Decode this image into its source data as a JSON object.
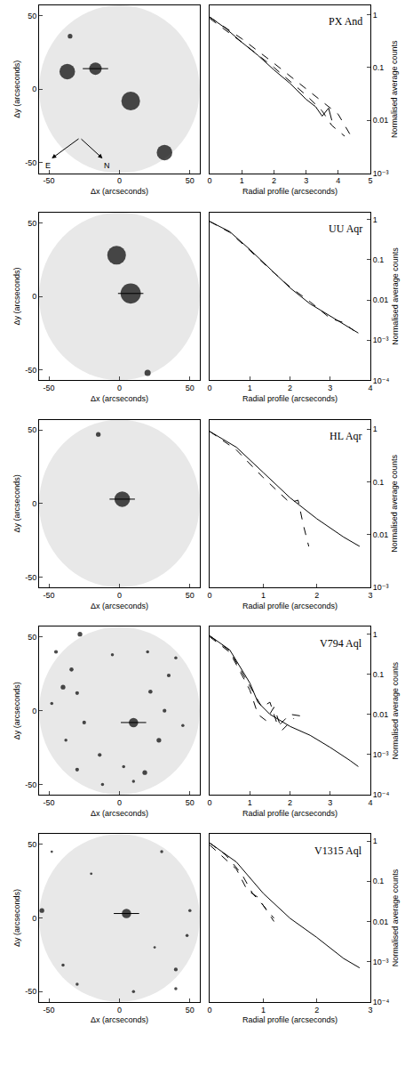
{
  "chart_data": [
    {
      "type": "image",
      "x_label": "Δx (arcseconds)",
      "y_label": "Δy (arcseconds)",
      "xlim": [
        -57,
        57
      ],
      "ylim": [
        -57,
        57
      ],
      "xticks": [
        -50,
        0,
        50
      ],
      "yticks": [
        -50,
        0,
        50
      ],
      "stars": {
        "x": [
          -37,
          8,
          32,
          -35
        ],
        "y": [
          12,
          -8,
          -43,
          36
        ],
        "size": [
          5,
          6,
          5,
          1.5
        ]
      },
      "target": {
        "x": -17,
        "y": 14,
        "size": 4
      },
      "compass": [
        "E",
        "N"
      ]
    },
    {
      "type": "line",
      "title": "PX And",
      "x_label": "Radial profile (arcseconds)",
      "y_label": "Normalised average counts",
      "log": "y",
      "xlim": [
        0,
        5
      ],
      "xticks": [
        0,
        1,
        2,
        3,
        4,
        5
      ],
      "ylim": [
        0.001,
        1.5
      ],
      "yticks": [
        1,
        0.1,
        0.01,
        {
          "value": 0.001,
          "label": "10⁻³"
        }
      ],
      "series": [
        {
          "line_style": "solid",
          "x": [
            0,
            0.5,
            1,
            1.5,
            2,
            2.5,
            3,
            3.3,
            3.5,
            3.7,
            3.8
          ],
          "values": [
            0.9,
            0.55,
            0.3,
            0.17,
            0.09,
            0.05,
            0.025,
            0.018,
            0.012,
            0.017,
            0.01
          ]
        },
        {
          "line_style": "dash",
          "x": [
            0,
            1,
            2,
            3,
            4,
            4.4
          ],
          "values": [
            0.9,
            0.35,
            0.12,
            0.04,
            0.013,
            0.005
          ]
        },
        {
          "line_style": "dash",
          "x": [
            0,
            1,
            2,
            3,
            3.5,
            3.8,
            4.2
          ],
          "values": [
            0.85,
            0.3,
            0.1,
            0.03,
            0.015,
            0.008,
            0.005
          ]
        }
      ]
    },
    {
      "type": "image",
      "x_label": "Δx (arcseconds)",
      "y_label": "Δy (arcseconds)",
      "xlim": [
        -57,
        57
      ],
      "ylim": [
        -57,
        57
      ],
      "xticks": [
        -50,
        0,
        50
      ],
      "yticks": [
        -50,
        0,
        50
      ],
      "stars": {
        "x": [
          -2,
          20
        ],
        "y": [
          28,
          -52
        ],
        "size": [
          6,
          2
        ]
      },
      "target": {
        "x": 8,
        "y": 2,
        "size": 6.5
      }
    },
    {
      "type": "line",
      "title": "UU Aqr",
      "x_label": "Radial profile (arcseconds)",
      "y_label": "Normalised average counts",
      "log": "y",
      "xlim": [
        0,
        4
      ],
      "xticks": [
        0,
        1,
        2,
        3,
        4
      ],
      "ylim": [
        0.0001,
        1.5
      ],
      "yticks": [
        1,
        0.1,
        0.01,
        {
          "value": 0.001,
          "label": "10⁻³"
        },
        {
          "value": 0.0001,
          "label": "10⁻⁴"
        }
      ],
      "series": [
        {
          "line_style": "solid",
          "x": [
            0,
            0.5,
            1,
            1.5,
            2,
            2.5,
            3,
            3.5,
            3.7
          ],
          "values": [
            0.9,
            0.5,
            0.18,
            0.06,
            0.02,
            0.008,
            0.004,
            0.002,
            0.0015
          ]
        },
        {
          "line_style": "dash",
          "x": [
            0,
            0.5,
            1,
            1.5,
            2,
            2.5,
            3,
            3.3,
            3.6
          ],
          "values": [
            0.9,
            0.48,
            0.17,
            0.058,
            0.021,
            0.009,
            0.0035,
            0.0028,
            0.0017
          ]
        }
      ]
    },
    {
      "type": "image",
      "x_label": "Δx (arcseconds)",
      "y_label": "Δy (arcseconds)",
      "xlim": [
        -57,
        57
      ],
      "ylim": [
        -57,
        57
      ],
      "xticks": [
        -50,
        0,
        50
      ],
      "yticks": [
        -50,
        0,
        50
      ],
      "stars": {
        "x": [
          -15
        ],
        "y": [
          47
        ],
        "size": [
          1.5
        ]
      },
      "target": {
        "x": 2,
        "y": 3,
        "size": 5
      }
    },
    {
      "type": "line",
      "title": "HL Aqr",
      "x_label": "Radial profile (arcseconds)",
      "y_label": "Normalised average counts",
      "log": "y",
      "xlim": [
        0,
        3
      ],
      "xticks": [
        0,
        1,
        2,
        3
      ],
      "ylim": [
        0.001,
        1.5
      ],
      "yticks": [
        1,
        0.1,
        0.01,
        {
          "value": 0.001,
          "label": "10⁻³"
        }
      ],
      "series": [
        {
          "line_style": "solid",
          "x": [
            0,
            0.5,
            1,
            1.5,
            2,
            2.5,
            2.8
          ],
          "values": [
            0.9,
            0.45,
            0.15,
            0.05,
            0.02,
            0.009,
            0.006
          ]
        },
        {
          "line_style": "dash",
          "x": [
            0,
            0.5,
            1,
            1.5,
            1.65,
            1.75,
            1.85
          ],
          "values": [
            0.9,
            0.4,
            0.12,
            0.04,
            0.045,
            0.015,
            0.006
          ]
        }
      ]
    },
    {
      "type": "image",
      "x_label": "Δx (arcseconds)",
      "y_label": "Δy (arcseconds)",
      "xlim": [
        -57,
        57
      ],
      "ylim": [
        -57,
        57
      ],
      "xticks": [
        -50,
        0,
        50
      ],
      "yticks": [
        -50,
        0,
        50
      ],
      "stars": {
        "x": [
          -28,
          -45,
          -34,
          -40,
          -30,
          -48,
          -25,
          -38,
          -14,
          -30,
          3,
          18,
          10,
          28,
          32,
          35,
          40,
          22,
          -5,
          20,
          45,
          -12
        ],
        "y": [
          52,
          40,
          28,
          16,
          12,
          5,
          -8,
          -20,
          -30,
          -40,
          -38,
          -42,
          -48,
          -20,
          0,
          24,
          36,
          13,
          38,
          40,
          -10,
          -50
        ],
        "size": [
          1.5,
          1.2,
          1.3,
          1.5,
          1.2,
          1,
          1.2,
          1,
          1.2,
          1.2,
          1,
          1.5,
          1,
          1.5,
          1.2,
          1.2,
          1,
          1.3,
          1,
          1,
          1,
          1
        ]
      },
      "target": {
        "x": 10,
        "y": -8,
        "size": 3
      }
    },
    {
      "type": "line",
      "title": "V794 Aql",
      "x_label": "Radial profile (arcseconds)",
      "y_label": "Normalised average counts",
      "log": "y",
      "xlim": [
        0,
        4
      ],
      "xticks": [
        0,
        1,
        2,
        3,
        4
      ],
      "ylim": [
        0.0001,
        1.5
      ],
      "yticks": [
        1,
        0.1,
        0.01,
        {
          "value": 0.001,
          "label": "10⁻³"
        },
        {
          "value": 0.0001,
          "label": "10⁻⁴"
        }
      ],
      "series": [
        {
          "line_style": "solid",
          "x": [
            0,
            0.5,
            1,
            1.2,
            1.5,
            2,
            2.5,
            3,
            3.5,
            3.7
          ],
          "values": [
            0.9,
            0.4,
            0.06,
            0.02,
            0.01,
            0.005,
            0.003,
            0.0015,
            0.0007,
            0.0005
          ]
        },
        {
          "line_style": "dash",
          "x": [
            0,
            0.5,
            1,
            1.3,
            1.5,
            1.7,
            2,
            2.3
          ],
          "values": [
            0.9,
            0.38,
            0.05,
            0.015,
            0.02,
            0.005,
            0.01,
            0.009
          ]
        },
        {
          "line_style": "dash",
          "x": [
            0,
            0.5,
            1,
            1.2,
            1.4,
            1.6,
            1.8,
            2.1
          ],
          "values": [
            0.85,
            0.35,
            0.04,
            0.01,
            0.007,
            0.015,
            0.004,
            0.008
          ]
        }
      ]
    },
    {
      "type": "image",
      "x_label": "Δx (arcseconds)",
      "y_label": "Δy (arcseconds)",
      "xlim": [
        -57,
        57
      ],
      "ylim": [
        -57,
        57
      ],
      "xticks": [
        -50,
        0,
        50
      ],
      "yticks": [
        -50,
        0,
        50
      ],
      "stars": {
        "x": [
          -55,
          -40,
          -30,
          40,
          50,
          48,
          30,
          -20,
          40,
          25,
          -48,
          10
        ],
        "y": [
          5,
          -32,
          -45,
          -35,
          5,
          -12,
          45,
          30,
          -48,
          -20,
          45,
          -50
        ],
        "size": [
          1.5,
          1,
          1,
          1.2,
          1,
          1,
          1,
          0.8,
          1,
          0.8,
          0.8,
          1
        ]
      },
      "target": {
        "x": 5,
        "y": 3,
        "size": 3
      }
    },
    {
      "type": "line",
      "title": "V1315 Aql",
      "x_label": "Radial profile (arcseconds)",
      "y_label": "Normalised average counts",
      "log": "y",
      "xlim": [
        0,
        3
      ],
      "xticks": [
        0,
        1,
        2,
        3
      ],
      "ylim": [
        0.0001,
        1.5
      ],
      "yticks": [
        1,
        0.1,
        0.01,
        {
          "value": 0.001,
          "label": "10⁻³"
        },
        {
          "value": 0.0001,
          "label": "10⁻⁴"
        }
      ],
      "series": [
        {
          "line_style": "solid",
          "x": [
            0,
            0.5,
            1,
            1.5,
            2,
            2.5,
            2.8
          ],
          "values": [
            0.9,
            0.3,
            0.05,
            0.012,
            0.004,
            0.0012,
            0.0007
          ]
        },
        {
          "line_style": "dash",
          "x": [
            0,
            0.3,
            0.6,
            0.8,
            1,
            1.2
          ],
          "values": [
            0.9,
            0.45,
            0.15,
            0.05,
            0.025,
            0.012
          ]
        },
        {
          "line_style": "dash",
          "x": [
            0,
            0.5,
            0.7,
            0.9,
            1.2
          ],
          "values": [
            0.8,
            0.2,
            0.06,
            0.04,
            0.01
          ]
        }
      ]
    }
  ]
}
